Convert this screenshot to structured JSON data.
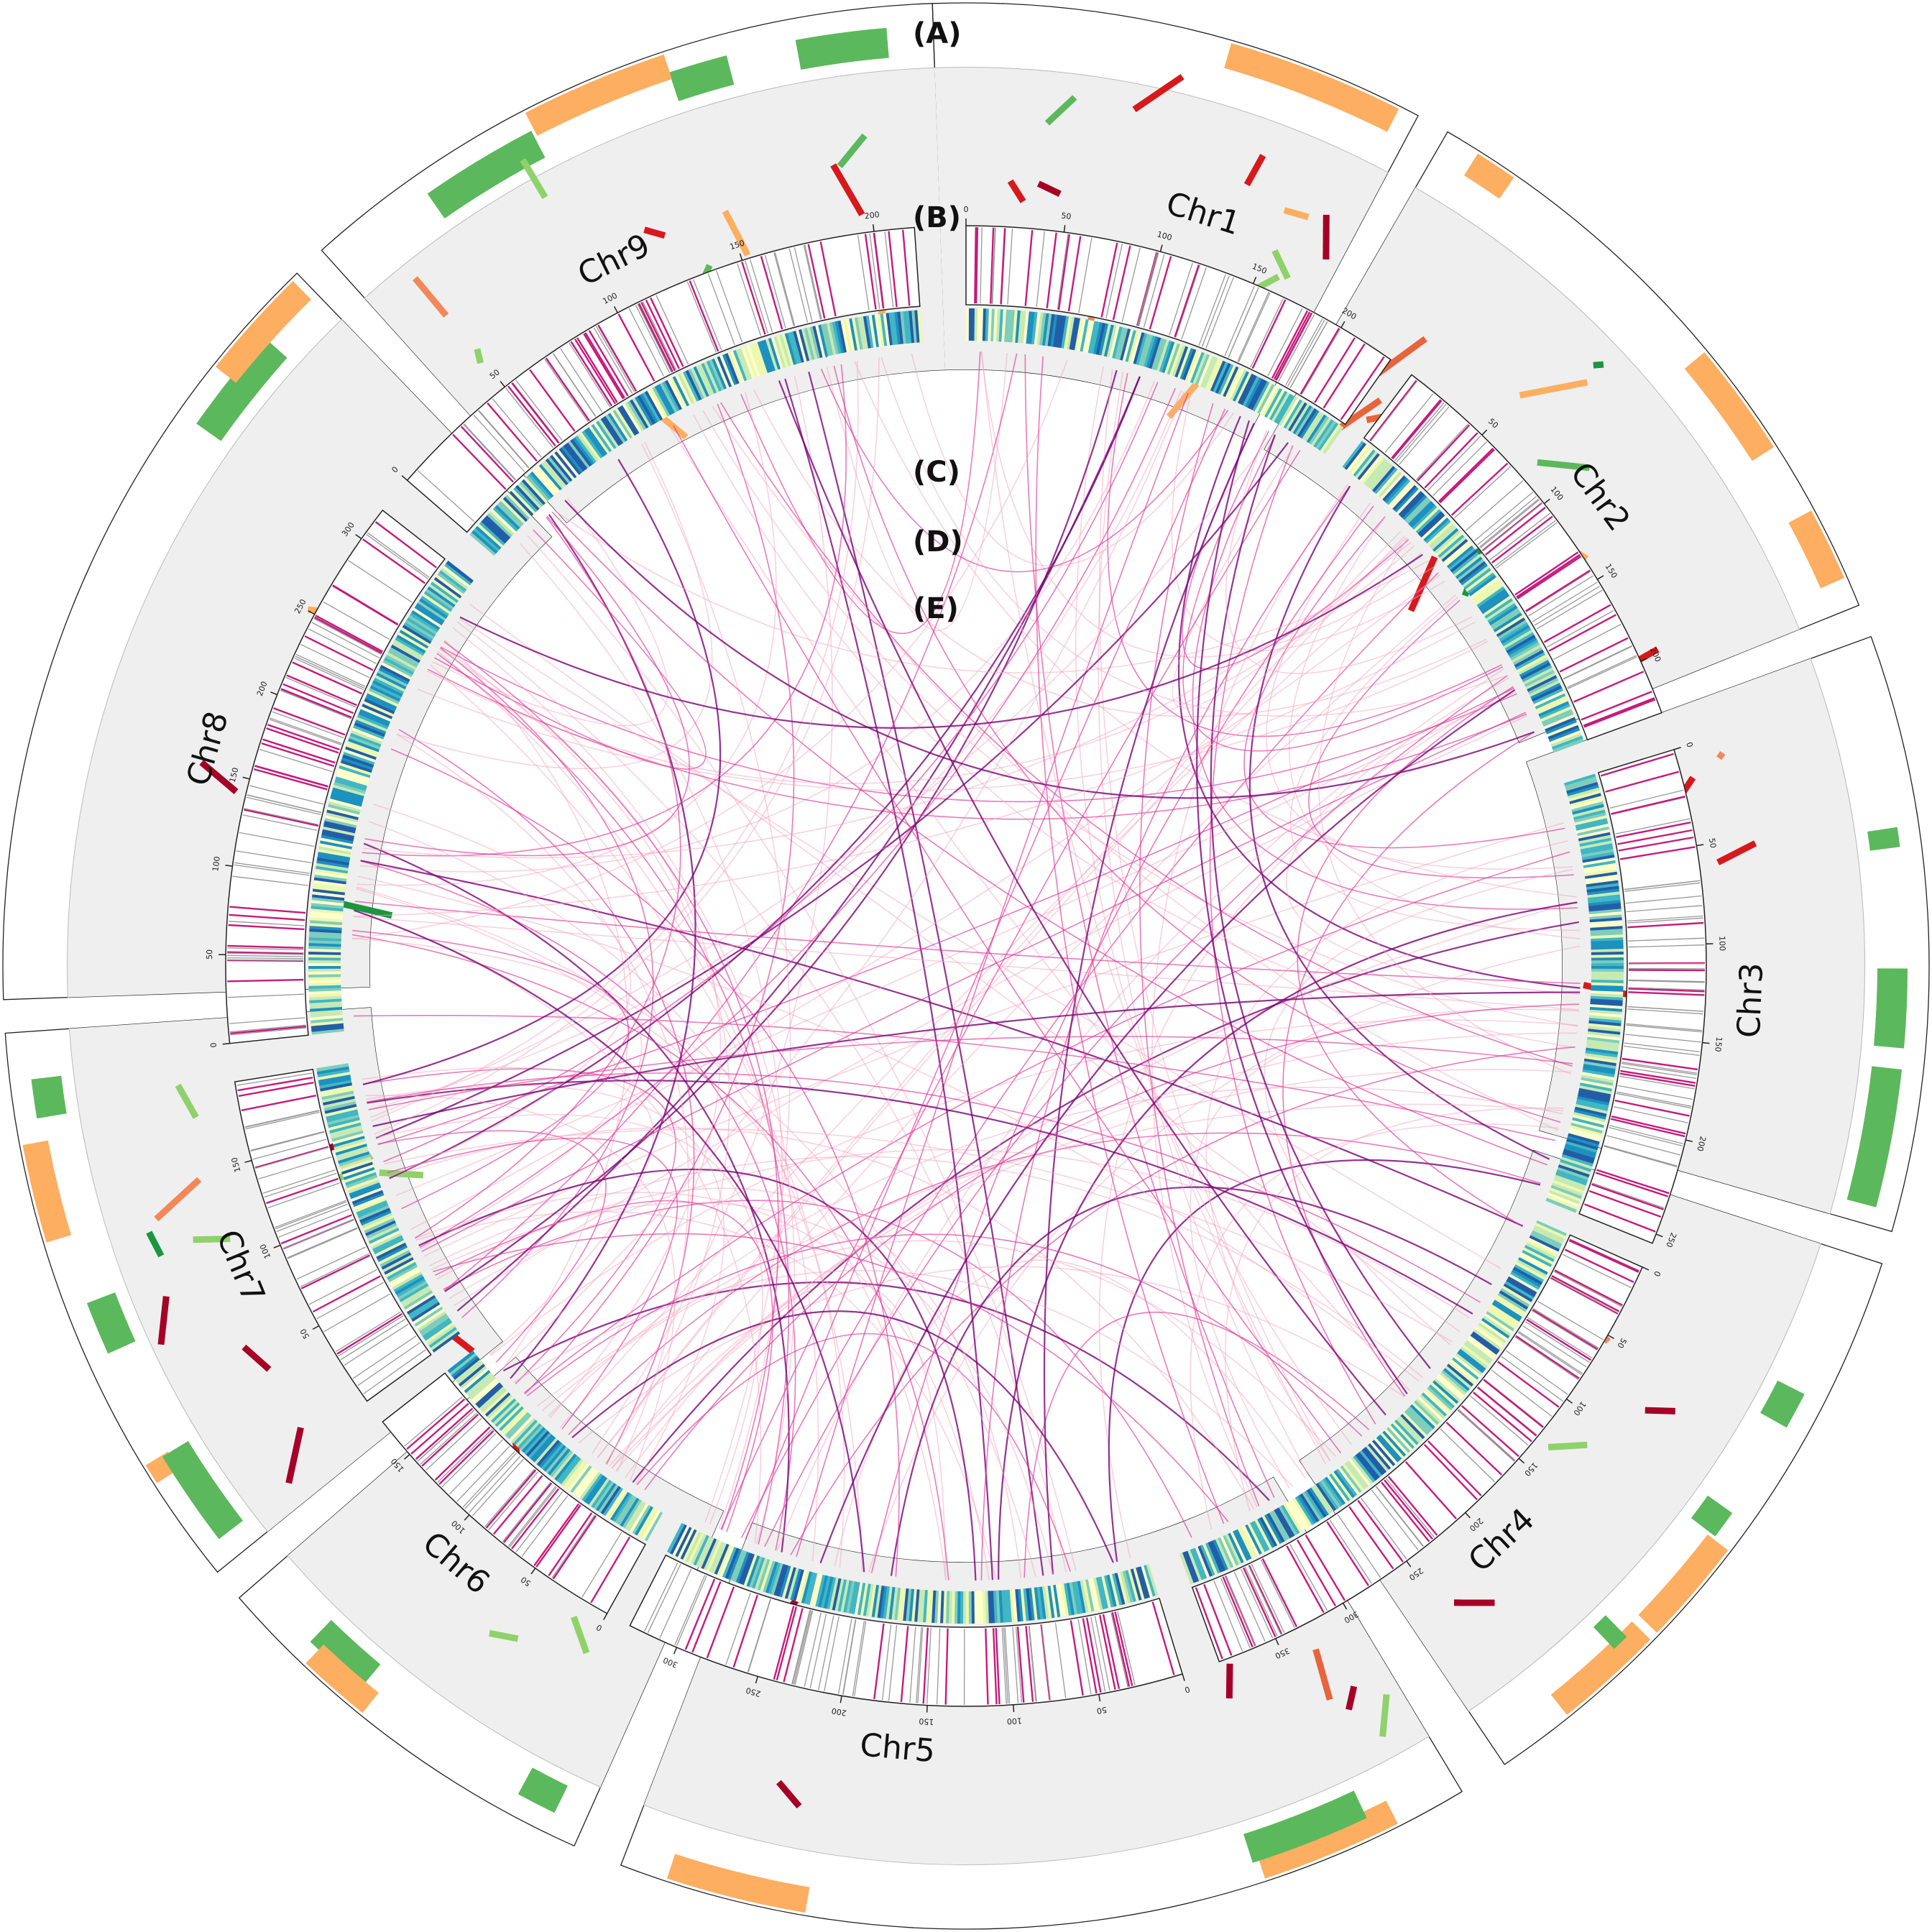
{
  "panel_labels": [
    "(A)",
    "(B)",
    "(C)",
    "(D)",
    "(E)"
  ],
  "chromosomes": [
    {
      "name": "Chr1",
      "length": 230,
      "ticks": [
        "0",
        "50",
        "100",
        "150",
        "200"
      ]
    },
    {
      "name": "Chr2",
      "length": 230,
      "ticks": [
        "50",
        "100",
        "150",
        "200"
      ]
    },
    {
      "name": "Chr3",
      "length": 255,
      "ticks": [
        "0",
        "50",
        "100",
        "150",
        "200",
        "250"
      ]
    },
    {
      "name": "Chr4",
      "length": 390,
      "ticks": [
        "0",
        "50",
        "100",
        "150",
        "200",
        "250",
        "300",
        "350"
      ]
    },
    {
      "name": "Chr5",
      "length": 330,
      "ticks": [
        "0",
        "50",
        "100",
        "150",
        "200",
        "250",
        "300"
      ]
    },
    {
      "name": "Chr6",
      "length": 175,
      "ticks": [
        "0",
        "50",
        "100",
        "150"
      ]
    },
    {
      "name": "Chr7",
      "length": 195,
      "ticks": [
        "50",
        "100",
        "150"
      ]
    },
    {
      "name": "Chr8",
      "length": 320,
      "ticks": [
        "0",
        "50",
        "100",
        "150",
        "200",
        "250",
        "300"
      ]
    },
    {
      "name": "Chr9",
      "length": 215,
      "ticks": [
        "0",
        "50",
        "100",
        "150",
        "200"
      ]
    }
  ],
  "colors": {
    "orange": "#fdae61",
    "green": "#5cb85c",
    "light_green": "#8fd16a",
    "dark_green": "#1a9641",
    "salmon": "#f4875a",
    "red_orange": "#e8643c",
    "red": "#d7191c",
    "dark_red": "#a50026",
    "magenta": "#c51b7d",
    "gray_line": "#999999",
    "heat_low": "#ffffcc",
    "heat_mid": "#41b6c4",
    "heat_high": "#225ea8",
    "track_bg": "#efefef",
    "link_light": "#f4a6c0",
    "link_mid": "#dd3497",
    "link_dark": "#7a0177"
  }
}
